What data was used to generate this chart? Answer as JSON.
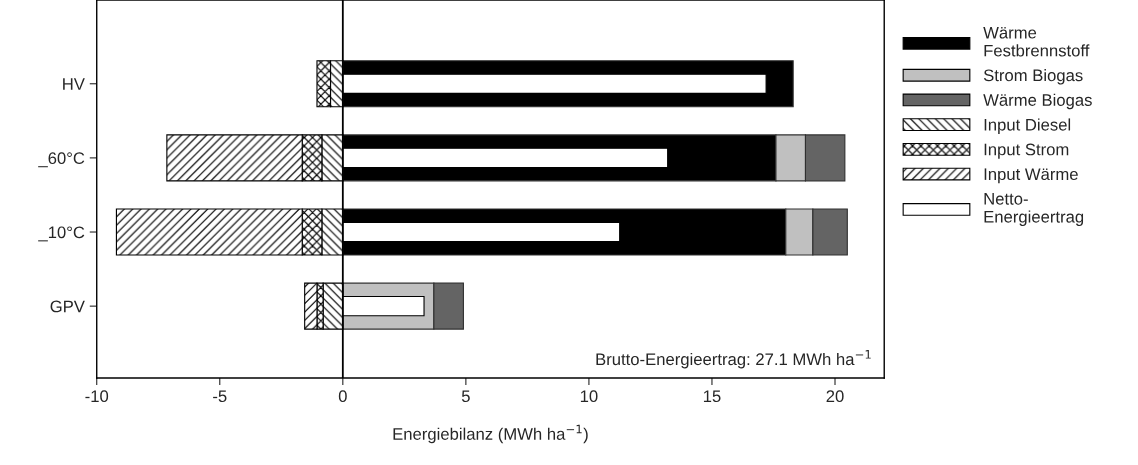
{
  "chart_data": {
    "type": "bar",
    "orientation": "horizontal",
    "categories": [
      "HV",
      "_60°C",
      "_10°C",
      "GPV"
    ],
    "series": [
      {
        "name": "Wärme Festbrennstoff",
        "color": "#000000",
        "values": [
          18.3,
          17.6,
          18.0,
          null
        ],
        "base": [
          0,
          0,
          0,
          null
        ]
      },
      {
        "name": "Strom Biogas",
        "color": "#c0c0c0",
        "values": [
          null,
          1.2,
          1.1,
          3.7
        ],
        "base": [
          null,
          17.6,
          18.0,
          0
        ]
      },
      {
        "name": "Wärme Biogas",
        "color": "#646464",
        "values": [
          null,
          1.6,
          1.4,
          1.2
        ],
        "base": [
          null,
          18.8,
          19.1,
          3.7
        ]
      },
      {
        "name": "Input Diesel",
        "color": "#000000",
        "values": [
          -0.5,
          -0.85,
          -0.85,
          -0.8
        ],
        "base": [
          0,
          0,
          0,
          0
        ]
      },
      {
        "name": "Input Strom",
        "color": "#000000",
        "values": [
          -0.55,
          -0.8,
          -0.8,
          -0.25
        ],
        "base": [
          -0.5,
          -0.85,
          -0.85,
          -0.8
        ]
      },
      {
        "name": "Input Wärme",
        "color": "#000000",
        "values": [
          null,
          -5.5,
          -7.55,
          -0.5
        ],
        "base": [
          null,
          -1.65,
          -1.65,
          -1.05
        ]
      },
      {
        "name": "Netto-Energieertrag",
        "color": "#ffffff",
        "values": [
          17.2,
          13.2,
          11.25,
          3.3
        ],
        "base": [
          0,
          0,
          0,
          0
        ]
      }
    ],
    "xlim": [
      -10,
      22
    ],
    "xticks": [
      -10,
      -5,
      0,
      5,
      10,
      15,
      20
    ],
    "xlabel": "Energiebilanz (MWh ha$^{−1}$)",
    "ref_lines": [
      {
        "axis": "x",
        "value": 0,
        "color": "#000000"
      }
    ],
    "annotations": [
      "Brutto-Energieertrag: 27.1 MWh ha$^{−1}$"
    ],
    "legend": "right",
    "grid": false
  }
}
